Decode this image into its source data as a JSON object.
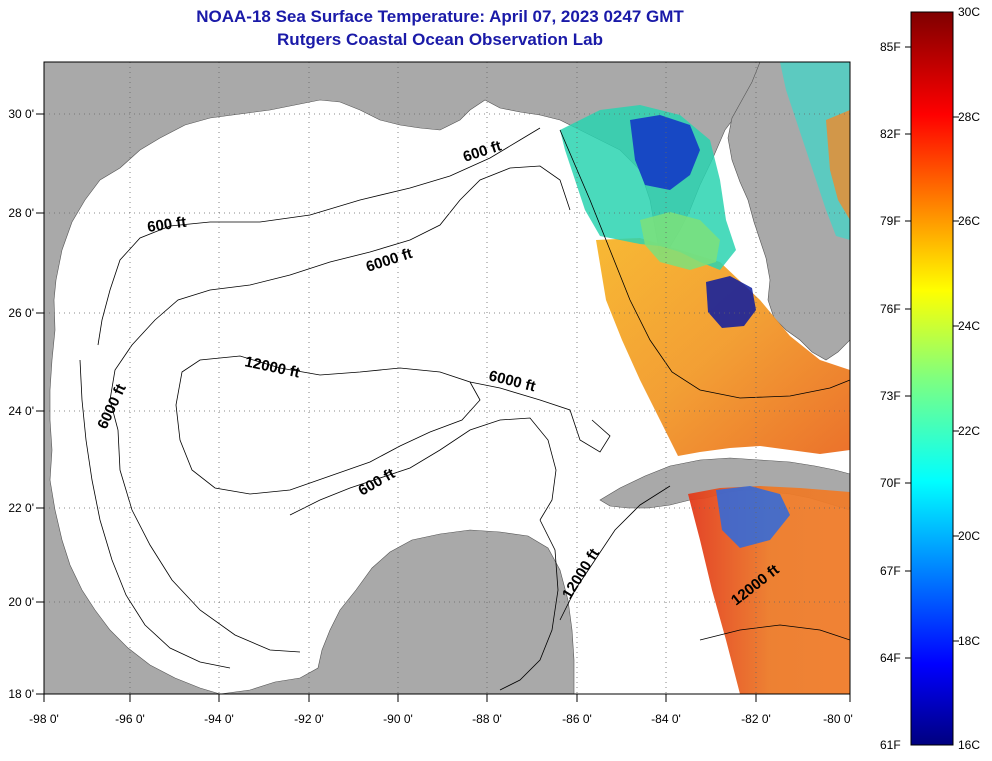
{
  "title": {
    "line1": "NOAA-18 Sea Surface Temperature:  April 07, 2023 0247 GMT",
    "line2": "Rutgers Coastal Ocean Observation Lab"
  },
  "axes": {
    "x_labels": [
      "-98 0'",
      "-96 0'",
      "-94 0'",
      "-92 0'",
      "-90 0'",
      "-88 0'",
      "-86 0'",
      "-84 0'",
      "-82 0'",
      "-80 0'"
    ],
    "y_labels": [
      "30 0'",
      "28 0'",
      "26 0'",
      "24 0'",
      "22 0'",
      "20 0'",
      "18 0'"
    ]
  },
  "contour_labels": [
    "600 ft",
    "600 ft",
    "6000 ft",
    "12000 ft",
    "6000 ft",
    "6000 ft",
    "600 ft",
    "12000 ft",
    "12000 ft"
  ],
  "colorbar": {
    "fahrenheit_labels": [
      "85F",
      "82F",
      "79F",
      "76F",
      "73F",
      "70F",
      "67F",
      "64F",
      "61F"
    ],
    "celsius_labels": [
      "30C",
      "28C",
      "26C",
      "24C",
      "22C",
      "20C",
      "18C",
      "16C"
    ],
    "range_celsius": [
      16,
      30
    ]
  },
  "colors": {
    "land": "#a9a9a9",
    "water": "#ffffff",
    "title": "#1a1aa8",
    "colorbar_top": "#800000",
    "colorbar_bottom": "#000080"
  }
}
